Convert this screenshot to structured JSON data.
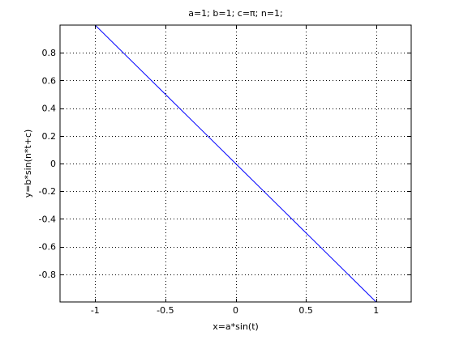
{
  "chart_data": {
    "type": "line",
    "title": "a=1; b=1; c=π; n=1;",
    "xlabel": "x=a*sin(t)",
    "ylabel": "y=b*sin(n*t+c)",
    "xlim": [
      -1.25,
      1.25
    ],
    "ylim": [
      -1,
      1
    ],
    "xticks": [
      -1,
      -0.5,
      0,
      0.5,
      1
    ],
    "xtick_labels": [
      "-1",
      "-0.5",
      "0",
      "0.5",
      "1"
    ],
    "yticks": [
      -0.8,
      -0.6,
      -0.4,
      -0.2,
      0,
      0.2,
      0.4,
      0.6,
      0.8
    ],
    "ytick_labels": [
      "-0.8",
      "-0.6",
      "-0.4",
      "-0.2",
      "0",
      "0.2",
      "0.4",
      "0.6",
      "0.8"
    ],
    "grid": true,
    "series": [
      {
        "x": [
          -1,
          -0.5,
          0,
          0.5,
          1
        ],
        "y": [
          1,
          0.5,
          0,
          -0.5,
          -1
        ],
        "color": "#0000ff"
      }
    ]
  }
}
